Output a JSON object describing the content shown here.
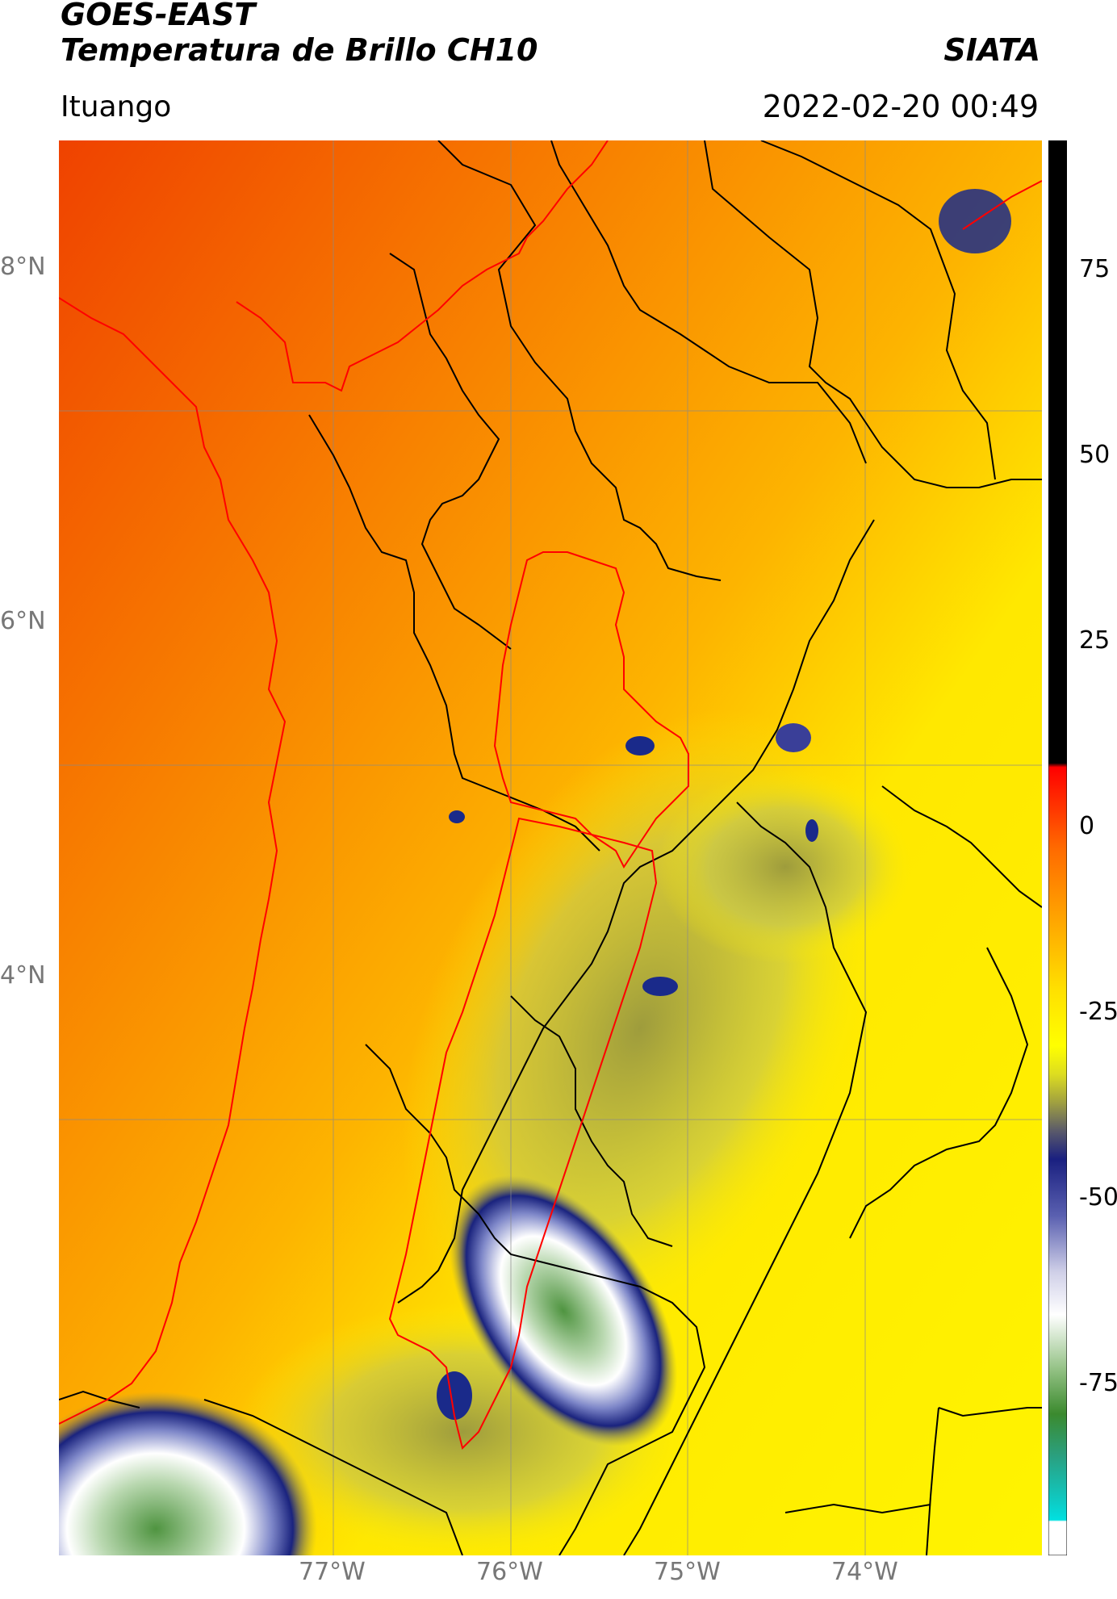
{
  "header": {
    "title_line1": "GOES-EAST",
    "title_line2": "Temperatura de Brillo CH10",
    "institution": "SIATA",
    "location": "Ituango",
    "timestamp": "2022-02-20 00:49"
  },
  "map": {
    "lat_labels": [
      "8°N",
      "6°N",
      "4°N"
    ],
    "lon_labels": [
      "77°W",
      "76°W",
      "75°W",
      "74°W"
    ],
    "gridlines": true,
    "base_colors": {
      "warm": "#f04a00",
      "orange": "#fb8a00",
      "yellow": "#fff200",
      "olive": "#a8a640",
      "navy": "#1a2a8a",
      "white": "#ffffff",
      "green": "#3b8a2e"
    },
    "border_color": "#000000",
    "basin_color": "#ff0000"
  },
  "colorbar": {
    "tick_labels": [
      "75",
      "50",
      "25",
      "0",
      "-25",
      "-50",
      "-75"
    ],
    "tick_values": [
      75,
      50,
      25,
      0,
      -25,
      -50,
      -75
    ],
    "range": [
      -100,
      90
    ]
  }
}
